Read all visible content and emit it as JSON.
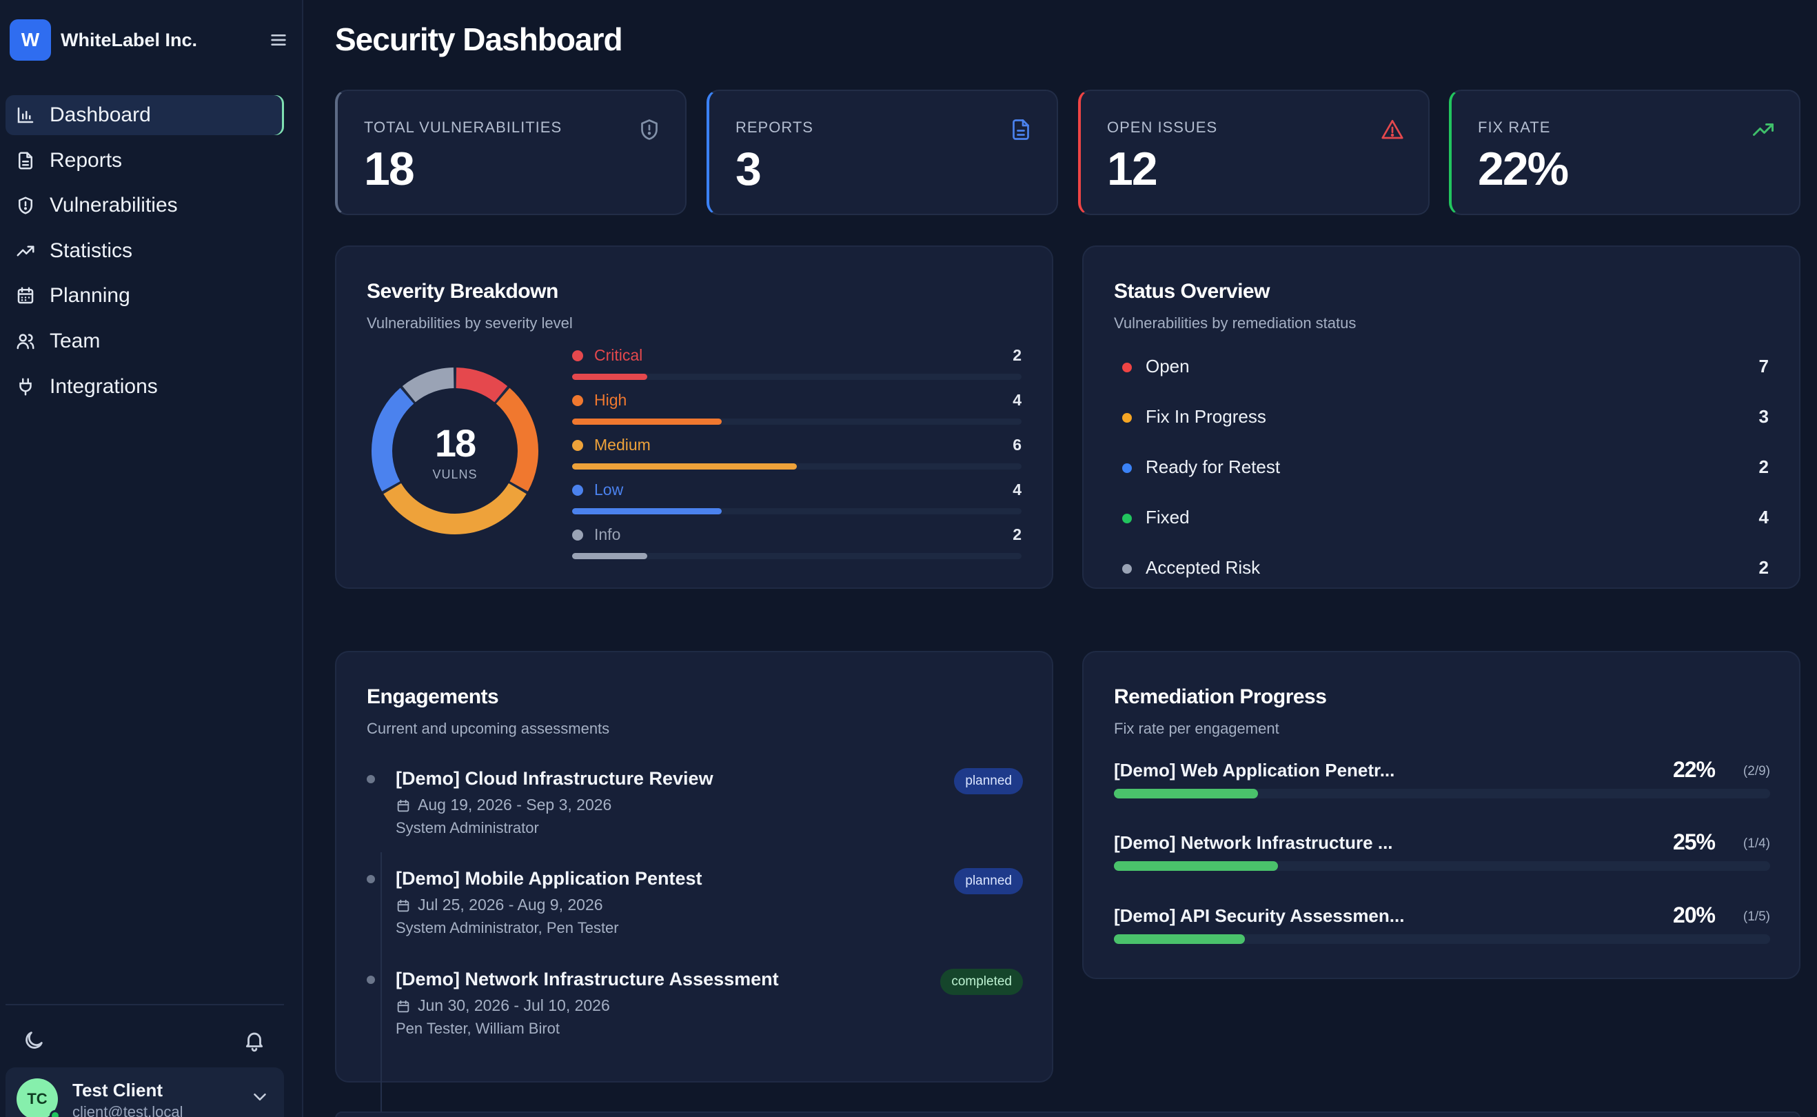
{
  "brand": {
    "logo_letter": "W",
    "name": "WhiteLabel Inc."
  },
  "nav": {
    "items": [
      {
        "label": "Dashboard",
        "icon": "bar-chart-icon",
        "active": true
      },
      {
        "label": "Reports",
        "icon": "document-icon"
      },
      {
        "label": "Vulnerabilities",
        "icon": "shield-icon"
      },
      {
        "label": "Statistics",
        "icon": "trending-up-icon"
      },
      {
        "label": "Planning",
        "icon": "calendar-icon"
      },
      {
        "label": "Team",
        "icon": "users-icon"
      },
      {
        "label": "Integrations",
        "icon": "plug-icon"
      }
    ]
  },
  "user": {
    "initials": "TC",
    "name": "Test Client",
    "email": "client@test.local"
  },
  "page": {
    "title": "Security Dashboard"
  },
  "stats": [
    {
      "label": "TOTAL VULNERABILITIES",
      "value": "18",
      "icon": "shield-icon",
      "accent": "#5d6b85"
    },
    {
      "label": "REPORTS",
      "value": "3",
      "icon": "document-icon",
      "accent": "#3b82f6"
    },
    {
      "label": "OPEN ISSUES",
      "value": "12",
      "icon": "warning-icon",
      "accent": "#ef4444"
    },
    {
      "label": "FIX RATE",
      "value": "22%",
      "icon": "trending-up-icon",
      "accent": "#22c55e"
    }
  ],
  "severity": {
    "title": "Severity Breakdown",
    "subtitle": "Vulnerabilities by severity level",
    "total": "18",
    "total_caption": "VULNS",
    "items": [
      {
        "label": "Critical",
        "count": 2,
        "color": "#e5484d"
      },
      {
        "label": "High",
        "count": 4,
        "color": "#f0782f"
      },
      {
        "label": "Medium",
        "count": 6,
        "color": "#eea23a"
      },
      {
        "label": "Low",
        "count": 4,
        "color": "#4b82ee"
      },
      {
        "label": "Info",
        "count": 2,
        "color": "#9aa3b5"
      }
    ]
  },
  "status": {
    "title": "Status Overview",
    "subtitle": "Vulnerabilities by remediation status",
    "items": [
      {
        "label": "Open",
        "count": "7",
        "color": "#ef4444"
      },
      {
        "label": "Fix In Progress",
        "count": "3",
        "color": "#f5a524"
      },
      {
        "label": "Ready for Retest",
        "count": "2",
        "color": "#3b82f6"
      },
      {
        "label": "Fixed",
        "count": "4",
        "color": "#22c55e"
      },
      {
        "label": "Accepted Risk",
        "count": "2",
        "color": "#9aa3b5"
      }
    ]
  },
  "engagements": {
    "title": "Engagements",
    "subtitle": "Current and upcoming assessments",
    "items": [
      {
        "title": "[Demo] Cloud Infrastructure Review",
        "dates": "Aug 19, 2026 - Sep 3, 2026",
        "people": "System Administrator",
        "status": "planned"
      },
      {
        "title": "[Demo] Mobile Application Pentest",
        "dates": "Jul 25, 2026 - Aug 9, 2026",
        "people": "System Administrator, Pen Tester",
        "status": "planned"
      },
      {
        "title": "[Demo] Network Infrastructure Assessment",
        "dates": "Jun 30, 2026 - Jul 10, 2026",
        "people": "Pen Tester, William Birot",
        "status": "completed"
      }
    ]
  },
  "remediation": {
    "title": "Remediation Progress",
    "subtitle": "Fix rate per engagement",
    "items": [
      {
        "name": "[Demo] Web Application Penetr...",
        "percent": "22%",
        "fraction": "(2/9)",
        "rate": 0.22
      },
      {
        "name": "[Demo] Network Infrastructure ...",
        "percent": "25%",
        "fraction": "(1/4)",
        "rate": 0.25
      },
      {
        "name": "[Demo] API Security Assessmen...",
        "percent": "20%",
        "fraction": "(1/5)",
        "rate": 0.2
      }
    ]
  }
}
